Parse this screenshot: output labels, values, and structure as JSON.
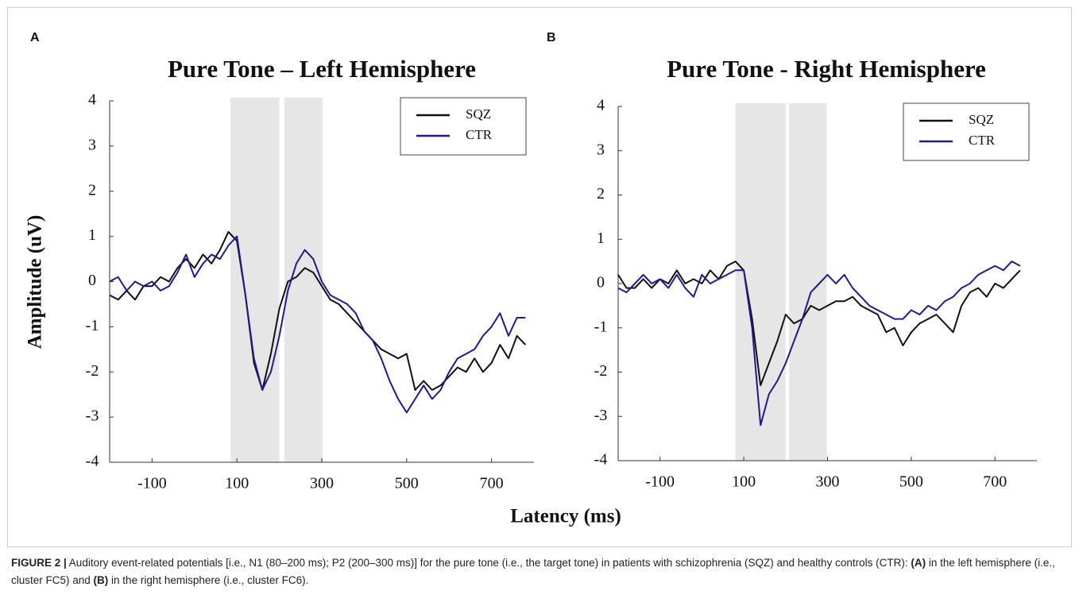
{
  "panel_labels": [
    "A",
    "B"
  ],
  "y_label": "Amplitude (uV)",
  "x_label": "Latency (ms)",
  "caption": [
    {
      "text": "FIGURE 2 |",
      "bold": true
    },
    {
      "text": " Auditory event-related potentials [i.e., N1 (80–200 ms); P2 (200–300 ms)] for the pure tone (i.e., the target tone) in patients with schizophrenia (SQZ) and healthy controls (CTR): ",
      "bold": false
    },
    {
      "text": "(A)",
      "bold": true
    },
    {
      "text": " in the left hemisphere (i.e., cluster FC5) and ",
      "bold": false
    },
    {
      "text": "(B)",
      "bold": true
    },
    {
      "text": " in the right hemisphere (i.e., cluster FC6).",
      "bold": false
    }
  ],
  "chart_data": [
    {
      "type": "line",
      "title": "Pure Tone – Left Hemisphere",
      "x": [
        -200,
        -180,
        -160,
        -140,
        -120,
        -100,
        -80,
        -60,
        -40,
        -20,
        0,
        20,
        40,
        60,
        80,
        100,
        120,
        140,
        160,
        180,
        200,
        220,
        240,
        260,
        280,
        300,
        320,
        340,
        360,
        380,
        400,
        420,
        440,
        460,
        480,
        500,
        520,
        540,
        560,
        580,
        600,
        620,
        640,
        660,
        680,
        700,
        720,
        740,
        760,
        780
      ],
      "series": [
        {
          "name": "SQZ",
          "color": "#111111",
          "values": [
            -0.3,
            -0.4,
            -0.2,
            -0.4,
            -0.1,
            -0.1,
            0.1,
            0.0,
            0.3,
            0.5,
            0.3,
            0.6,
            0.4,
            0.7,
            1.1,
            0.9,
            -0.3,
            -1.8,
            -2.4,
            -1.6,
            -0.6,
            0.0,
            0.1,
            0.3,
            0.2,
            -0.1,
            -0.4,
            -0.5,
            -0.7,
            -0.9,
            -1.1,
            -1.3,
            -1.5,
            -1.6,
            -1.7,
            -1.6,
            -2.4,
            -2.2,
            -2.4,
            -2.3,
            -2.1,
            -1.9,
            -2.0,
            -1.7,
            -2.0,
            -1.8,
            -1.4,
            -1.7,
            -1.2,
            -1.4
          ]
        },
        {
          "name": "CTR",
          "color": "#1c1c8f",
          "values": [
            0.0,
            0.1,
            -0.2,
            0.0,
            -0.1,
            0.0,
            -0.2,
            -0.1,
            0.2,
            0.6,
            0.1,
            0.4,
            0.6,
            0.5,
            0.8,
            1.0,
            -0.3,
            -1.7,
            -2.4,
            -2.0,
            -1.2,
            -0.2,
            0.4,
            0.7,
            0.5,
            0.0,
            -0.3,
            -0.4,
            -0.5,
            -0.7,
            -1.1,
            -1.3,
            -1.7,
            -2.2,
            -2.6,
            -2.9,
            -2.6,
            -2.3,
            -2.6,
            -2.4,
            -2.0,
            -1.7,
            -1.6,
            -1.5,
            -1.2,
            -1.0,
            -0.7,
            -1.2,
            -0.8,
            -0.8
          ]
        }
      ],
      "shaded_regions": [
        [
          85,
          200
        ],
        [
          212,
          302
        ]
      ],
      "xlim": [
        -200,
        800
      ],
      "xticks": [
        -100,
        100,
        300,
        500,
        700
      ],
      "ylim": [
        -4,
        4
      ],
      "yticks": [
        -4,
        -3,
        -2,
        -1,
        0,
        1,
        2,
        3,
        4
      ],
      "legend": "upper right",
      "grid": false
    },
    {
      "type": "line",
      "title": "Pure Tone - Right Hemisphere",
      "x": [
        -200,
        -180,
        -160,
        -140,
        -120,
        -100,
        -80,
        -60,
        -40,
        -20,
        0,
        20,
        40,
        60,
        80,
        100,
        120,
        140,
        160,
        180,
        200,
        220,
        240,
        260,
        280,
        300,
        320,
        340,
        360,
        380,
        400,
        420,
        440,
        460,
        480,
        500,
        520,
        540,
        560,
        580,
        600,
        620,
        640,
        660,
        680,
        700,
        720,
        740,
        760
      ],
      "series": [
        {
          "name": "SQZ",
          "color": "#111111",
          "values": [
            0.2,
            -0.1,
            -0.1,
            0.1,
            -0.1,
            0.1,
            0.0,
            0.3,
            0.0,
            0.1,
            0.0,
            0.3,
            0.1,
            0.4,
            0.5,
            0.3,
            -0.8,
            -2.3,
            -1.8,
            -1.3,
            -0.7,
            -0.9,
            -0.8,
            -0.5,
            -0.6,
            -0.5,
            -0.4,
            -0.4,
            -0.3,
            -0.5,
            -0.6,
            -0.7,
            -1.1,
            -1.0,
            -1.4,
            -1.1,
            -0.9,
            -0.8,
            -0.7,
            -0.9,
            -1.1,
            -0.5,
            -0.2,
            -0.1,
            -0.3,
            0.0,
            -0.1,
            0.1,
            0.3
          ]
        },
        {
          "name": "CTR",
          "color": "#1c1c8f",
          "values": [
            -0.1,
            -0.2,
            0.0,
            0.2,
            0.0,
            0.1,
            -0.1,
            0.2,
            -0.1,
            -0.3,
            0.2,
            0.0,
            0.1,
            0.2,
            0.3,
            0.3,
            -1.0,
            -3.2,
            -2.5,
            -2.2,
            -1.8,
            -1.3,
            -0.8,
            -0.2,
            0.0,
            0.2,
            0.0,
            0.2,
            -0.1,
            -0.3,
            -0.5,
            -0.6,
            -0.7,
            -0.8,
            -0.8,
            -0.6,
            -0.7,
            -0.5,
            -0.6,
            -0.4,
            -0.3,
            -0.1,
            0.0,
            0.2,
            0.3,
            0.4,
            0.3,
            0.5,
            0.4
          ]
        }
      ],
      "shaded_regions": [
        [
          80,
          200
        ],
        [
          208,
          298
        ]
      ],
      "xlim": [
        -200,
        800
      ],
      "xticks": [
        -100,
        100,
        300,
        500,
        700
      ],
      "ylim": [
        -4,
        4
      ],
      "yticks": [
        -4,
        -3,
        -2,
        -1,
        0,
        1,
        2,
        3,
        4
      ],
      "legend": "upper right",
      "grid": false
    }
  ]
}
